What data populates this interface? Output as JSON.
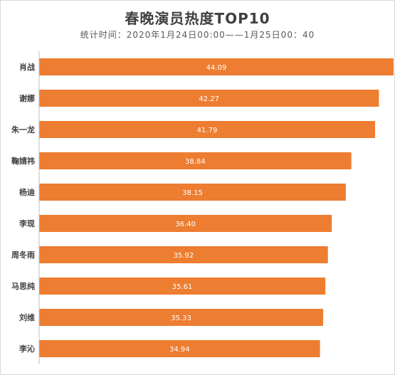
{
  "chart_data": {
    "type": "bar",
    "orientation": "horizontal",
    "title": "春晚演员热度TOP10",
    "subtitle": "统计时间：2020年1月24日00:00——1月25日00：40",
    "categories": [
      "肖战",
      "谢娜",
      "朱一龙",
      "鞠婧祎",
      "杨迪",
      "李现",
      "周冬雨",
      "马思纯",
      "刘维",
      "李沁"
    ],
    "values": [
      44.09,
      42.27,
      41.79,
      38.84,
      38.15,
      36.4,
      35.92,
      35.61,
      35.33,
      34.94
    ],
    "value_labels": [
      "44.09",
      "42.27",
      "41.79",
      "38.84",
      "38.15",
      "36.40",
      "35.92",
      "35.61",
      "35.33",
      "34.94"
    ],
    "xlim": [
      0,
      45
    ],
    "bar_color": "#ed7d31",
    "grid": false,
    "legend": "none",
    "data_labels": "inside-center"
  }
}
